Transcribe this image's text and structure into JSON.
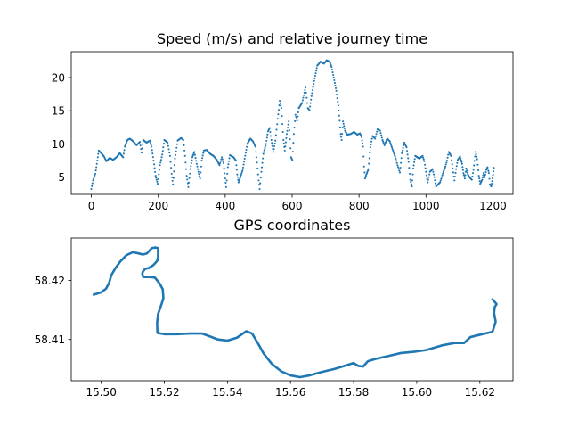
{
  "chart_data": [
    {
      "type": "scatter",
      "title": "Speed (m/s) and relative journey time",
      "xlabel": "",
      "ylabel": "",
      "xlim": [
        -60,
        1260
      ],
      "ylim": [
        2.4,
        23.9
      ],
      "xticks": [
        0,
        200,
        400,
        600,
        800,
        1000,
        1200
      ],
      "yticks": [
        5,
        10,
        15,
        20
      ],
      "xtick_labels": [
        "0",
        "200",
        "400",
        "600",
        "800",
        "1000",
        "1200"
      ],
      "ytick_labels": [
        "5",
        "10",
        "15",
        "20"
      ],
      "grid": false,
      "legend": "none",
      "color": "#1f77b4",
      "keypoints": [
        [
          0,
          3.2
        ],
        [
          5,
          4.5
        ],
        [
          12,
          5.5
        ],
        [
          18,
          7.5
        ],
        [
          22,
          9.0
        ],
        [
          30,
          8.6
        ],
        [
          38,
          8.1
        ],
        [
          45,
          7.4
        ],
        [
          55,
          7.9
        ],
        [
          65,
          7.6
        ],
        [
          75,
          8.0
        ],
        [
          85,
          8.6
        ],
        [
          95,
          8.0
        ],
        [
          100,
          9.6
        ],
        [
          108,
          10.6
        ],
        [
          115,
          10.8
        ],
        [
          125,
          10.4
        ],
        [
          135,
          9.8
        ],
        [
          145,
          10.3
        ],
        [
          150,
          8.7
        ],
        [
          155,
          10.6
        ],
        [
          165,
          10.2
        ],
        [
          175,
          10.5
        ],
        [
          180,
          9.6
        ],
        [
          186,
          7.5
        ],
        [
          192,
          5.2
        ],
        [
          198,
          4.0
        ],
        [
          205,
          6.8
        ],
        [
          212,
          8.4
        ],
        [
          218,
          10.6
        ],
        [
          228,
          10.2
        ],
        [
          235,
          8.2
        ],
        [
          240,
          5.5
        ],
        [
          244,
          3.9
        ],
        [
          250,
          7.8
        ],
        [
          258,
          10.5
        ],
        [
          268,
          10.9
        ],
        [
          275,
          10.6
        ],
        [
          280,
          8.2
        ],
        [
          285,
          5.2
        ],
        [
          290,
          3.5
        ],
        [
          296,
          6.2
        ],
        [
          302,
          8.0
        ],
        [
          308,
          8.8
        ],
        [
          315,
          7.0
        ],
        [
          320,
          5.8
        ],
        [
          325,
          4.8
        ],
        [
          330,
          7.5
        ],
        [
          336,
          9.0
        ],
        [
          345,
          9.1
        ],
        [
          355,
          8.5
        ],
        [
          365,
          8.2
        ],
        [
          375,
          7.6
        ],
        [
          383,
          6.8
        ],
        [
          390,
          8.0
        ],
        [
          395,
          7.1
        ],
        [
          400,
          4.8
        ],
        [
          403,
          3.5
        ],
        [
          408,
          6.5
        ],
        [
          414,
          8.3
        ],
        [
          425,
          8.0
        ],
        [
          432,
          7.5
        ],
        [
          436,
          5.4
        ],
        [
          440,
          4.2
        ],
        [
          452,
          6.0
        ],
        [
          466,
          10.0
        ],
        [
          475,
          10.8
        ],
        [
          483,
          10.4
        ],
        [
          490,
          9.6
        ],
        [
          495,
          7.2
        ],
        [
          500,
          4.5
        ],
        [
          503,
          3.2
        ],
        [
          508,
          5.8
        ],
        [
          514,
          8.5
        ],
        [
          522,
          10.0
        ],
        [
          528,
          11.9
        ],
        [
          533,
          12.4
        ],
        [
          538,
          10.6
        ],
        [
          544,
          8.8
        ],
        [
          550,
          10.5
        ],
        [
          557,
          13.8
        ],
        [
          563,
          16.5
        ],
        [
          568,
          15.4
        ],
        [
          574,
          10.6
        ],
        [
          578,
          9.0
        ],
        [
          584,
          11.5
        ],
        [
          590,
          13.4
        ],
        [
          597,
          8.0
        ],
        [
          601,
          7.5
        ],
        [
          605,
          11.5
        ],
        [
          610,
          14.4
        ],
        [
          615,
          13.5
        ],
        [
          620,
          15.4
        ],
        [
          630,
          16.2
        ],
        [
          640,
          18.5
        ],
        [
          647,
          15.4
        ],
        [
          652,
          15.1
        ],
        [
          658,
          17.2
        ],
        [
          666,
          19.5
        ],
        [
          675,
          21.8
        ],
        [
          685,
          22.4
        ],
        [
          695,
          22.1
        ],
        [
          703,
          22.6
        ],
        [
          712,
          22.4
        ],
        [
          718,
          21.6
        ],
        [
          726,
          19.6
        ],
        [
          732,
          18.0
        ],
        [
          738,
          15.8
        ],
        [
          742,
          13.5
        ],
        [
          745,
          11.5
        ],
        [
          748,
          10.6
        ],
        [
          752,
          13.4
        ],
        [
          758,
          12.0
        ],
        [
          765,
          11.4
        ],
        [
          775,
          11.5
        ],
        [
          785,
          11.8
        ],
        [
          795,
          11.4
        ],
        [
          803,
          11.6
        ],
        [
          808,
          11.0
        ],
        [
          812,
          9.6
        ],
        [
          815,
          6.6
        ],
        [
          818,
          4.8
        ],
        [
          822,
          5.4
        ],
        [
          828,
          6.2
        ],
        [
          834,
          9.5
        ],
        [
          840,
          11.2
        ],
        [
          848,
          10.8
        ],
        [
          855,
          12.2
        ],
        [
          863,
          12.0
        ],
        [
          870,
          10.6
        ],
        [
          876,
          9.8
        ],
        [
          884,
          10.8
        ],
        [
          892,
          10.4
        ],
        [
          900,
          9.2
        ],
        [
          908,
          8.1
        ],
        [
          915,
          6.8
        ],
        [
          922,
          5.7
        ],
        [
          928,
          8.6
        ],
        [
          935,
          10.2
        ],
        [
          942,
          9.5
        ],
        [
          948,
          7.3
        ],
        [
          953,
          4.6
        ],
        [
          958,
          3.6
        ],
        [
          962,
          6.3
        ],
        [
          968,
          8.2
        ],
        [
          980,
          7.8
        ],
        [
          990,
          8.2
        ],
        [
          995,
          7.4
        ],
        [
          1000,
          5.8
        ],
        [
          1005,
          4.2
        ],
        [
          1012,
          5.8
        ],
        [
          1020,
          6.2
        ],
        [
          1025,
          5.0
        ],
        [
          1030,
          3.6
        ],
        [
          1042,
          4.2
        ],
        [
          1052,
          5.8
        ],
        [
          1058,
          6.6
        ],
        [
          1063,
          7.5
        ],
        [
          1068,
          8.8
        ],
        [
          1075,
          8.2
        ],
        [
          1080,
          6.3
        ],
        [
          1085,
          4.5
        ],
        [
          1090,
          6.2
        ],
        [
          1095,
          7.6
        ],
        [
          1102,
          8.1
        ],
        [
          1108,
          7.0
        ],
        [
          1112,
          5.6
        ],
        [
          1116,
          4.8
        ],
        [
          1120,
          6.3
        ],
        [
          1125,
          5.4
        ],
        [
          1130,
          5.0
        ],
        [
          1137,
          4.6
        ],
        [
          1142,
          6.1
        ],
        [
          1148,
          8.8
        ],
        [
          1153,
          7.7
        ],
        [
          1158,
          5.2
        ],
        [
          1162,
          4.0
        ],
        [
          1168,
          4.6
        ],
        [
          1172,
          5.6
        ],
        [
          1176,
          5.0
        ],
        [
          1180,
          6.1
        ],
        [
          1184,
          6.5
        ],
        [
          1188,
          5.6
        ],
        [
          1191,
          3.9
        ],
        [
          1195,
          3.6
        ],
        [
          1199,
          4.8
        ],
        [
          1203,
          6.4
        ]
      ]
    },
    {
      "type": "line",
      "title": "GPS coordinates",
      "xlabel": "",
      "ylabel": "",
      "xlim": [
        15.4905,
        15.6305
      ],
      "ylim": [
        58.403,
        58.4272
      ],
      "xticks": [
        15.5,
        15.52,
        15.54,
        15.56,
        15.58,
        15.6,
        15.62
      ],
      "yticks": [
        58.41,
        58.42
      ],
      "xtick_labels": [
        "15.50",
        "15.52",
        "15.54",
        "15.56",
        "15.58",
        "15.60",
        "15.62"
      ],
      "ytick_labels": [
        "58.41",
        "58.42"
      ],
      "grid": false,
      "legend": "none",
      "color": "#1f77b4",
      "path": [
        [
          15.4976,
          58.4176
        ],
        [
          15.5,
          58.418
        ],
        [
          15.5015,
          58.4186
        ],
        [
          15.5025,
          58.4196
        ],
        [
          15.5032,
          58.4209
        ],
        [
          15.5045,
          58.4221
        ],
        [
          15.506,
          58.4232
        ],
        [
          15.508,
          58.4243
        ],
        [
          15.51,
          58.4248
        ],
        [
          15.5118,
          58.4246
        ],
        [
          15.5132,
          58.4244
        ],
        [
          15.5145,
          58.4246
        ],
        [
          15.516,
          58.4255
        ],
        [
          15.5172,
          58.4256
        ],
        [
          15.518,
          58.4255
        ],
        [
          15.518,
          58.424
        ],
        [
          15.5177,
          58.4233
        ],
        [
          15.5165,
          58.4226
        ],
        [
          15.515,
          58.4221
        ],
        [
          15.514,
          58.422
        ],
        [
          15.5133,
          58.4216
        ],
        [
          15.513,
          58.4212
        ],
        [
          15.5133,
          58.4206
        ],
        [
          15.515,
          58.4206
        ],
        [
          15.517,
          58.4205
        ],
        [
          15.5185,
          58.4195
        ],
        [
          15.5195,
          58.4185
        ],
        [
          15.5197,
          58.417
        ],
        [
          15.519,
          58.4158
        ],
        [
          15.518,
          58.4143
        ],
        [
          15.5177,
          58.4128
        ],
        [
          15.5178,
          58.4111
        ],
        [
          15.52,
          58.4109
        ],
        [
          15.524,
          58.4109
        ],
        [
          15.528,
          58.411
        ],
        [
          15.532,
          58.411
        ],
        [
          15.534,
          58.4106
        ],
        [
          15.537,
          58.41
        ],
        [
          15.54,
          58.4098
        ],
        [
          15.543,
          58.4103
        ],
        [
          15.546,
          58.4114
        ],
        [
          15.5478,
          58.411
        ],
        [
          15.5495,
          58.4095
        ],
        [
          15.5515,
          58.4076
        ],
        [
          15.554,
          58.4059
        ],
        [
          15.557,
          58.4046
        ],
        [
          15.56,
          58.4039
        ],
        [
          15.563,
          58.4036
        ],
        [
          15.566,
          58.4039
        ],
        [
          15.57,
          58.4045
        ],
        [
          15.574,
          58.405
        ],
        [
          15.577,
          58.4055
        ],
        [
          15.58,
          58.406
        ],
        [
          15.5815,
          58.4055
        ],
        [
          15.583,
          58.4054
        ],
        [
          15.5845,
          58.4063
        ],
        [
          15.587,
          58.4067
        ],
        [
          15.591,
          58.4072
        ],
        [
          15.595,
          58.4077
        ],
        [
          15.599,
          58.4079
        ],
        [
          15.603,
          58.4082
        ],
        [
          15.608,
          58.409
        ],
        [
          15.612,
          58.4094
        ],
        [
          15.615,
          58.4094
        ],
        [
          15.617,
          58.4104
        ],
        [
          15.62,
          58.4108
        ],
        [
          15.624,
          58.4113
        ],
        [
          15.625,
          58.413
        ],
        [
          15.6245,
          58.4145
        ],
        [
          15.6247,
          58.4155
        ],
        [
          15.6253,
          58.416
        ],
        [
          15.624,
          58.4168
        ]
      ]
    }
  ]
}
